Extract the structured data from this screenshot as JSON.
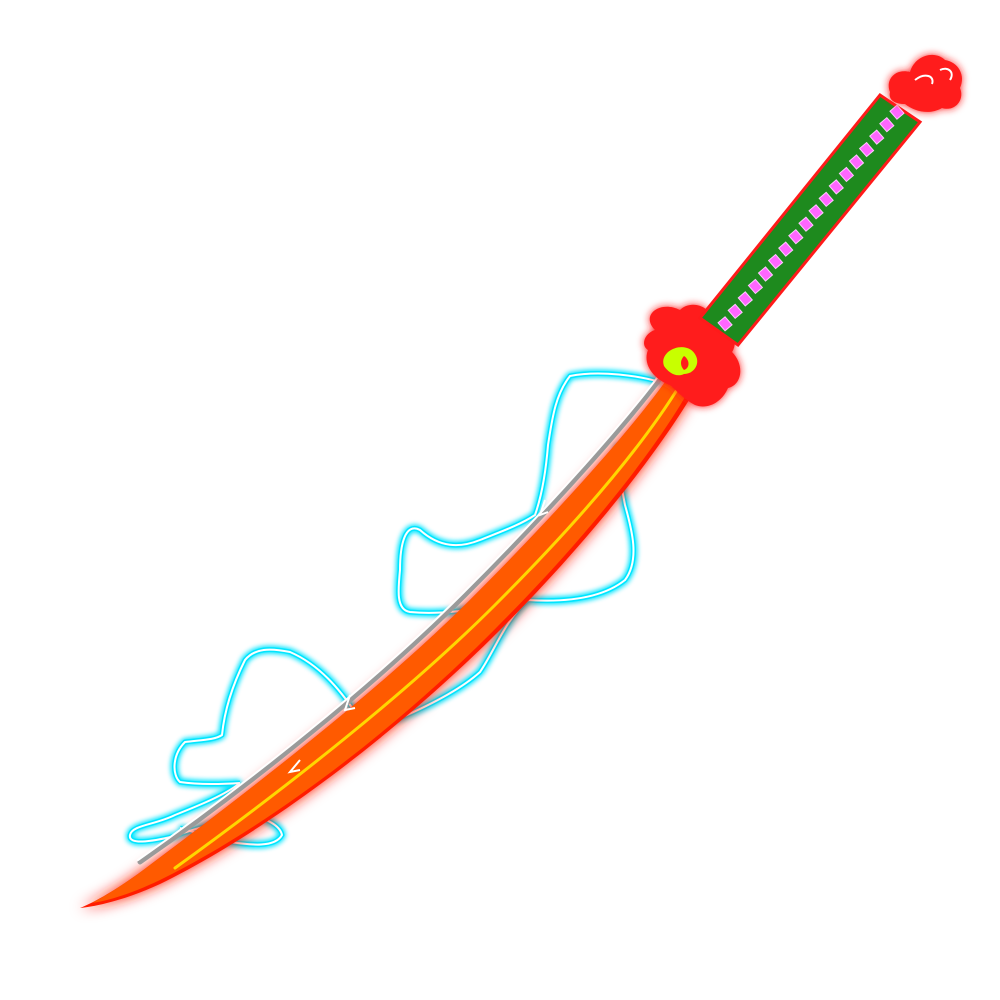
{
  "artwork": {
    "subject": "katana-sword-icon",
    "colors": {
      "background": "#ffffff",
      "aura_outline": "#00e5ff",
      "aura_core": "#ffffff",
      "blade_core": "#ff5a00",
      "blade_glow": "#ff1a00",
      "blade_highlight": "#ffd700",
      "blade_edge": "#9a9a9a",
      "guard": "#ff1a1a",
      "guard_accent": "#c8ff00",
      "handle_wrap": "#1e8a1e",
      "handle_diamonds": "#ff66ff",
      "pommel": "#ff1a1a"
    }
  }
}
